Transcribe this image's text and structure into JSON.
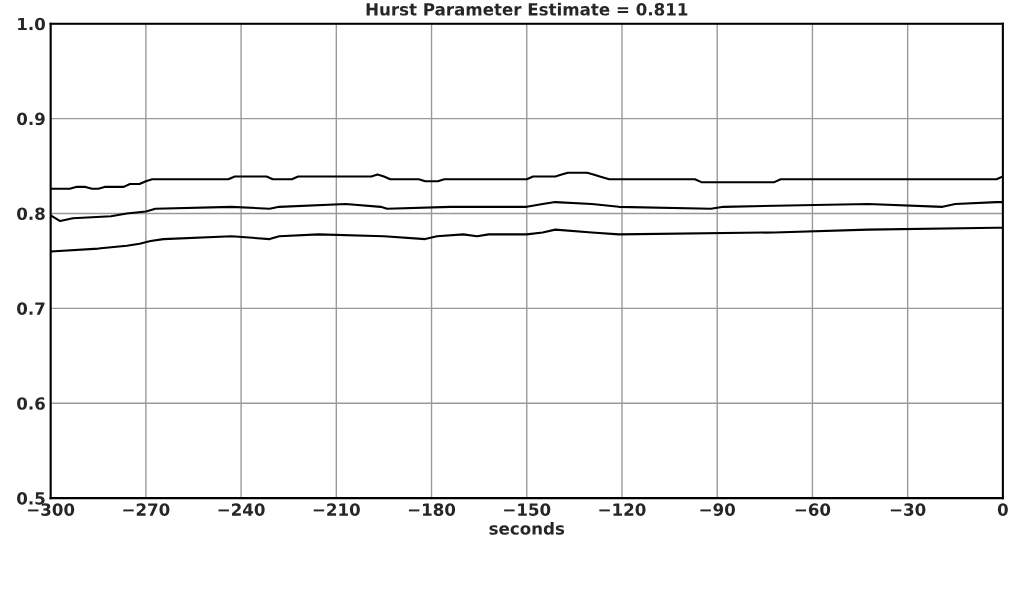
{
  "chart_data": {
    "type": "line",
    "title": "Hurst Parameter Estimate = 0.811",
    "xlabel": "seconds",
    "xlim": [
      -300,
      0
    ],
    "xticks": [
      {
        "value": -300,
        "label": "−300"
      },
      {
        "value": -270,
        "label": "−270"
      },
      {
        "value": -240,
        "label": "−240"
      },
      {
        "value": -210,
        "label": "−210"
      },
      {
        "value": -180,
        "label": "−180"
      },
      {
        "value": -150,
        "label": "−150"
      },
      {
        "value": -120,
        "label": "−120"
      },
      {
        "value": -90,
        "label": "−90"
      },
      {
        "value": -60,
        "label": "−60"
      },
      {
        "value": -30,
        "label": "−30"
      },
      0
    ],
    "ylim": [
      0.5,
      1.0
    ],
    "yticks": [
      {
        "value": 0.5,
        "label": "0.5"
      },
      {
        "value": 0.6,
        "label": "0.6"
      },
      {
        "value": 0.7,
        "label": "0.7"
      },
      {
        "value": 0.8,
        "label": "0.8"
      },
      {
        "value": 0.9,
        "label": "0.9"
      },
      {
        "value": 1.0,
        "label": "1.0"
      }
    ],
    "grid": true,
    "marker": "none",
    "line_style": "solid",
    "series": [
      {
        "color": "#000000",
        "x": [
          -300,
          -294,
          -292,
          -289,
          -287,
          -285,
          -283,
          -277,
          -275,
          -272,
          -270,
          -268,
          -244,
          -242,
          -232,
          -230,
          -224,
          -222,
          -199,
          -197,
          -195,
          -193,
          -184,
          -182,
          -178,
          -176,
          -150,
          -148,
          -141,
          -139,
          -137,
          -131,
          -129,
          -127,
          -124,
          -97,
          -95,
          -72,
          -70,
          -2,
          0
        ],
        "values": [
          0.826,
          0.826,
          0.828,
          0.828,
          0.826,
          0.826,
          0.828,
          0.828,
          0.831,
          0.831,
          0.834,
          0.836,
          0.836,
          0.839,
          0.839,
          0.836,
          0.836,
          0.839,
          0.839,
          0.841,
          0.839,
          0.836,
          0.836,
          0.834,
          0.834,
          0.836,
          0.836,
          0.839,
          0.839,
          0.841,
          0.843,
          0.843,
          0.841,
          0.839,
          0.836,
          0.836,
          0.833,
          0.833,
          0.836,
          0.836,
          0.839
        ]
      },
      {
        "color": "#000000",
        "x": [
          -300,
          -297,
          -293,
          -281,
          -276,
          -270,
          -267,
          -243,
          -231,
          -228,
          -207,
          -196,
          -194,
          -174,
          -150,
          -145,
          -141,
          -129.5,
          -121,
          -92,
          -88,
          -42.5,
          -19,
          -15,
          -2,
          0
        ],
        "values": [
          0.798,
          0.792,
          0.795,
          0.797,
          0.8,
          0.802,
          0.805,
          0.807,
          0.805,
          0.807,
          0.81,
          0.807,
          0.805,
          0.807,
          0.807,
          0.81,
          0.812,
          0.81,
          0.807,
          0.805,
          0.807,
          0.81,
          0.807,
          0.81,
          0.812,
          0.812
        ]
      },
      {
        "color": "#000000",
        "x": [
          -300,
          -285,
          -276,
          -272,
          -268.5,
          -264.5,
          -243,
          -231,
          -228,
          -215.6,
          -195,
          -182,
          -178.3,
          -170,
          -165.7,
          -162,
          -150,
          -145,
          -141,
          -129.5,
          -121,
          -72,
          -42.5,
          -2,
          0
        ],
        "values": [
          0.76,
          0.763,
          0.766,
          0.768,
          0.771,
          0.773,
          0.776,
          0.773,
          0.776,
          0.778,
          0.776,
          0.773,
          0.776,
          0.778,
          0.776,
          0.778,
          0.778,
          0.78,
          0.783,
          0.78,
          0.778,
          0.78,
          0.783,
          0.785,
          0.785
        ]
      }
    ]
  }
}
